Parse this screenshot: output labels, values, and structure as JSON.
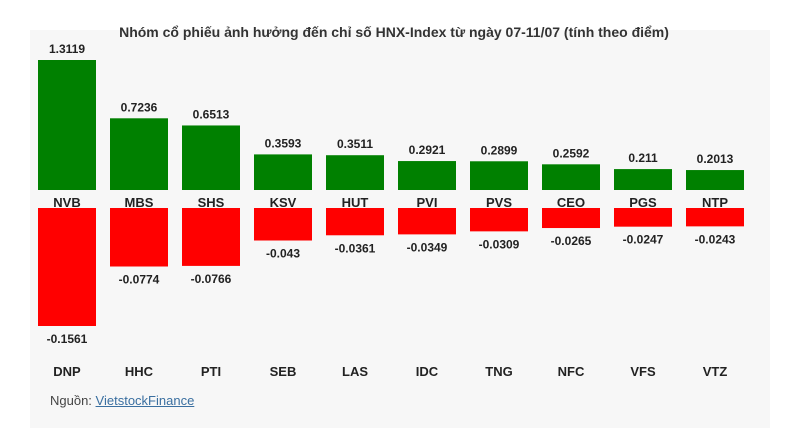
{
  "chart_data": {
    "type": "bar",
    "title": "Nhóm cổ phiếu ảnh hưởng đến chỉ số HNX-Index từ ngày 07-11/07 (tính theo điểm)",
    "positive": {
      "categories": [
        "NVB",
        "MBS",
        "SHS",
        "KSV",
        "HUT",
        "PVI",
        "PVS",
        "CEO",
        "PGS",
        "NTP"
      ],
      "values": [
        1.3119,
        0.7236,
        0.6513,
        0.3593,
        0.3511,
        0.2921,
        0.2899,
        0.2592,
        0.211,
        0.2013
      ],
      "labels": [
        "1.3119",
        "0.7236",
        "0.6513",
        "0.3593",
        "0.3511",
        "0.2921",
        "0.2899",
        "0.2592",
        "0.211",
        "0.2013"
      ],
      "color": "#008000"
    },
    "negative": {
      "categories": [
        "DNP",
        "HHC",
        "PTI",
        "SEB",
        "LAS",
        "IDC",
        "TNG",
        "NFC",
        "VFS",
        "VTZ"
      ],
      "values": [
        -0.1561,
        -0.0774,
        -0.0766,
        -0.043,
        -0.0361,
        -0.0349,
        -0.0309,
        -0.0265,
        -0.0247,
        -0.0243
      ],
      "labels": [
        "-0.1561",
        "-0.0774",
        "-0.0766",
        "-0.043",
        "-0.0361",
        "-0.0349",
        "-0.0309",
        "-0.0265",
        "-0.0247",
        "-0.0243"
      ],
      "color": "#ff0000"
    }
  },
  "source": {
    "label": "Nguồn:",
    "link_text": "VietstockFinance"
  }
}
